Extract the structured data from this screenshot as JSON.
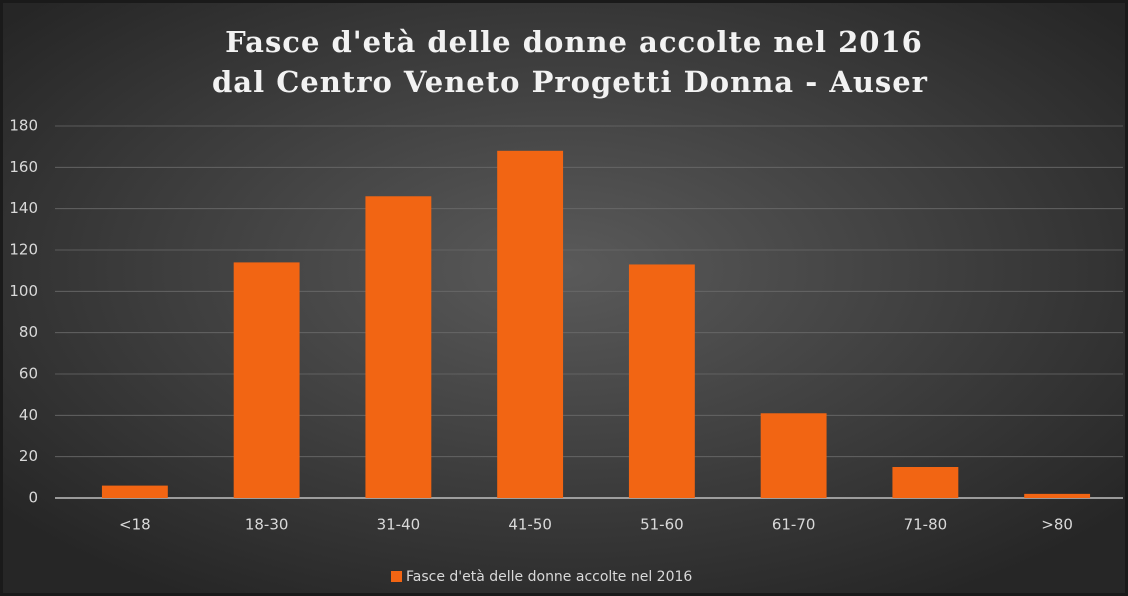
{
  "chart_data": {
    "type": "bar",
    "title": [
      "Fasce d'età delle donne accolte nel 2016",
      "dal Centro Veneto Progetti Donna - Auser"
    ],
    "categories": [
      "<18",
      "18-30",
      "31-40",
      "41-50",
      "51-60",
      "61-70",
      "71-80",
      ">80"
    ],
    "series": [
      {
        "name": "Fasce d'età delle donne accolte nel 2016",
        "color": "#f26513",
        "values": [
          6,
          114,
          146,
          168,
          113,
          41,
          15,
          2
        ]
      }
    ],
    "ylim": [
      0,
      180
    ],
    "yticks": [
      0,
      20,
      40,
      60,
      80,
      100,
      120,
      140,
      160,
      180
    ],
    "grid": true,
    "legend": "bottom"
  }
}
